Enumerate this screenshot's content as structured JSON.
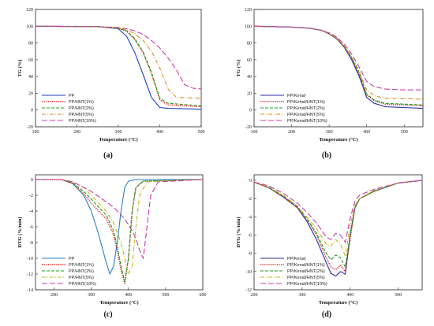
{
  "chart_data": [
    {
      "type": "line",
      "caption": "(a)",
      "xlabel": "Temperature (°C)",
      "ylabel": "TG (%)",
      "xlim": [
        100,
        500
      ],
      "ylim": [
        -20,
        120
      ],
      "xticks": [
        "100",
        "200",
        "300",
        "400",
        "500"
      ],
      "yticks": [
        "-20",
        "0",
        "20",
        "40",
        "60",
        "80",
        "100",
        "120"
      ],
      "legend_position": "bottom-left",
      "series": [
        {
          "name": "PP",
          "color": "#1f3fbf",
          "dash": "solid",
          "x": [
            100,
            250,
            300,
            320,
            340,
            360,
            380,
            400,
            420,
            500
          ],
          "y": [
            100,
            99.5,
            97,
            88,
            68,
            42,
            15,
            3,
            2,
            1
          ]
        },
        {
          "name": "PP/HNT(1%)",
          "color": "#d81b1b",
          "dash": "dotted",
          "x": [
            100,
            250,
            300,
            320,
            340,
            360,
            380,
            400,
            420,
            500
          ],
          "y": [
            100,
            99.5,
            97.5,
            94,
            84,
            68,
            43,
            12,
            6,
            4
          ]
        },
        {
          "name": "PP/HNT(2%)",
          "color": "#1a9a1a",
          "dash": "dashed",
          "x": [
            100,
            250,
            300,
            320,
            340,
            360,
            380,
            400,
            420,
            500
          ],
          "y": [
            100,
            99.5,
            97.5,
            94.5,
            85,
            69,
            45,
            14,
            8,
            5
          ]
        },
        {
          "name": "PP/HNT(5%)",
          "color": "#e08a1a",
          "dash": "dashdot",
          "x": [
            100,
            250,
            300,
            320,
            340,
            360,
            380,
            400,
            420,
            440,
            500
          ],
          "y": [
            100,
            99.5,
            98,
            95.5,
            91,
            83,
            70,
            50,
            25,
            15,
            14
          ]
        },
        {
          "name": "PP/HNT(10%)",
          "color": "#c83bb0",
          "dash": "longdash",
          "x": [
            100,
            250,
            300,
            320,
            340,
            360,
            380,
            400,
            420,
            440,
            460,
            480,
            500
          ],
          "y": [
            100,
            99.5,
            98.5,
            97,
            94.5,
            90,
            83,
            74,
            62,
            48,
            30,
            26,
            25
          ]
        }
      ]
    },
    {
      "type": "line",
      "caption": "(b)",
      "xlabel": "Temperature (°C)",
      "ylabel": "TG (%)",
      "xlim": [
        100,
        550
      ],
      "ylim": [
        -20,
        120
      ],
      "xticks": [
        "100",
        "200",
        "300",
        "400",
        "500"
      ],
      "yticks": [
        "-20",
        "0",
        "20",
        "40",
        "60",
        "80",
        "100",
        "120"
      ],
      "legend_position": "bottom-left",
      "series": [
        {
          "name": "PP/Kenaf",
          "color": "#2a2aa8",
          "dash": "solid",
          "x": [
            100,
            200,
            250,
            280,
            300,
            320,
            340,
            360,
            380,
            400,
            420,
            450,
            550
          ],
          "y": [
            100,
            99,
            97.5,
            95,
            91,
            85,
            75,
            60,
            40,
            15,
            8,
            4,
            2
          ]
        },
        {
          "name": "PP/Kenaf/HNT(1%)",
          "color": "#d81b1b",
          "dash": "dotted",
          "x": [
            100,
            200,
            250,
            280,
            300,
            320,
            340,
            360,
            380,
            400,
            420,
            450,
            550
          ],
          "y": [
            100,
            99,
            97.5,
            95,
            91,
            85.5,
            76,
            62,
            43,
            18,
            11,
            7,
            5
          ]
        },
        {
          "name": "PP/Kenaf/HNT(2%)",
          "color": "#1a9a1a",
          "dash": "dashed",
          "x": [
            100,
            200,
            250,
            280,
            300,
            320,
            340,
            360,
            380,
            400,
            420,
            450,
            550
          ],
          "y": [
            100,
            99,
            97.5,
            95,
            91,
            85.5,
            76,
            62,
            44,
            19,
            12,
            8,
            6
          ]
        },
        {
          "name": "PP/Kenaf/HNT(5%)",
          "color": "#e08a1a",
          "dash": "dashdot",
          "x": [
            100,
            200,
            250,
            280,
            300,
            320,
            340,
            360,
            380,
            400,
            420,
            450,
            550
          ],
          "y": [
            100,
            99,
            97.5,
            95,
            91.5,
            86,
            77,
            64,
            46,
            24,
            17,
            14,
            13
          ]
        },
        {
          "name": "PP/Kenaf/HNT(10%)",
          "color": "#c83bb0",
          "dash": "longdash",
          "x": [
            100,
            200,
            250,
            280,
            300,
            320,
            340,
            360,
            380,
            400,
            420,
            450,
            500,
            550
          ],
          "y": [
            100,
            99,
            97.5,
            95,
            92,
            87,
            79,
            67,
            51,
            34,
            28,
            25,
            24,
            24
          ]
        }
      ]
    },
    {
      "type": "line",
      "caption": "(c)",
      "xlabel": "Temperature (°C)",
      "ylabel": "DTG (%/min)",
      "xlim": [
        150,
        600
      ],
      "ylim": [
        -14,
        0.6
      ],
      "xticks": [
        "200",
        "300",
        "400",
        "500",
        "600"
      ],
      "yticks": [
        "-14",
        "-12",
        "-10",
        "-8",
        "-6",
        "-4",
        "-2",
        "0"
      ],
      "legend_position": "bottom-left",
      "series": [
        {
          "name": "PP",
          "color": "#2a7fc4",
          "dash": "solid",
          "x": [
            150,
            220,
            250,
            280,
            300,
            320,
            340,
            350,
            360,
            370,
            380,
            390,
            400,
            420,
            600
          ],
          "y": [
            0,
            0,
            -0.5,
            -2,
            -4,
            -7,
            -10.5,
            -12,
            -11,
            -8,
            -4,
            -1,
            -0.2,
            0,
            0
          ]
        },
        {
          "name": "PP/HNT(1%)",
          "color": "#d81b1b",
          "dash": "dotted",
          "x": [
            150,
            220,
            250,
            280,
            300,
            320,
            340,
            360,
            370,
            380,
            390,
            400,
            410,
            420,
            440,
            600
          ],
          "y": [
            0,
            0,
            -0.5,
            -1.8,
            -3,
            -4,
            -5,
            -7,
            -9,
            -11.5,
            -13.2,
            -10,
            -4,
            -1,
            -0.2,
            0
          ]
        },
        {
          "name": "PP/HNT(2%)",
          "color": "#1a9a1a",
          "dash": "dashed",
          "x": [
            150,
            220,
            250,
            280,
            300,
            320,
            340,
            360,
            370,
            380,
            390,
            400,
            410,
            420,
            440,
            600
          ],
          "y": [
            0,
            0,
            -0.4,
            -1.5,
            -2.5,
            -3.5,
            -4.5,
            -6.5,
            -8.5,
            -11,
            -13,
            -10,
            -4,
            -1,
            -0.2,
            0
          ]
        },
        {
          "name": "PP/HNT(5%)",
          "color": "#c8b21a",
          "dash": "dashdot",
          "x": [
            150,
            220,
            250,
            280,
            300,
            320,
            340,
            360,
            380,
            390,
            400,
            410,
            420,
            430,
            450,
            600
          ],
          "y": [
            0,
            0,
            -0.3,
            -1,
            -2,
            -3,
            -4,
            -5.5,
            -8,
            -10,
            -12,
            -11,
            -6,
            -2,
            -0.3,
            0
          ]
        },
        {
          "name": "PP/HNT(10%)",
          "color": "#c83bb0",
          "dash": "longdash",
          "x": [
            150,
            220,
            250,
            280,
            300,
            330,
            360,
            390,
            410,
            420,
            430,
            440,
            450,
            460,
            480,
            600
          ],
          "y": [
            0,
            0,
            -0.3,
            -1,
            -1.5,
            -2.5,
            -3.5,
            -5,
            -6.5,
            -7.5,
            -9,
            -10,
            -6,
            -2,
            -0.3,
            0
          ]
        }
      ]
    },
    {
      "type": "line",
      "caption": "(d)",
      "xlabel": "Temperature (°C)",
      "ylabel": "DTG (%/min)",
      "xlim": [
        200,
        550
      ],
      "ylim": [
        -12,
        0.6
      ],
      "xticks": [
        "200",
        "300",
        "400",
        "500"
      ],
      "yticks": [
        "-12",
        "-10",
        "-8",
        "-6",
        "-4",
        "-2",
        "0"
      ],
      "legend_position": "bottom-left",
      "series": [
        {
          "name": "PP/Kenaf",
          "color": "#2a2aa8",
          "dash": "solid",
          "x": [
            200,
            230,
            260,
            290,
            310,
            330,
            350,
            360,
            370,
            380,
            390,
            400,
            410,
            420,
            450,
            500,
            550
          ],
          "y": [
            -0.2,
            -0.8,
            -1.8,
            -3,
            -4.5,
            -6.5,
            -9,
            -10.2,
            -10.5,
            -10,
            -10.3,
            -6,
            -3,
            -2,
            -1.2,
            -0.3,
            0
          ]
        },
        {
          "name": "PP/Kenaf/HNT(1%)",
          "color": "#d81b1b",
          "dash": "dotted",
          "x": [
            200,
            230,
            260,
            290,
            310,
            330,
            350,
            360,
            370,
            380,
            390,
            400,
            410,
            420,
            450,
            500,
            550
          ],
          "y": [
            -0.2,
            -0.8,
            -1.8,
            -3,
            -4.3,
            -6,
            -8.5,
            -9.5,
            -9.8,
            -9.3,
            -10,
            -6.5,
            -3,
            -2,
            -1.2,
            -0.3,
            0
          ]
        },
        {
          "name": "PP/Kenaf/HNT(2%)",
          "color": "#1a9a1a",
          "dash": "dashed",
          "x": [
            200,
            230,
            260,
            290,
            310,
            330,
            350,
            360,
            370,
            380,
            390,
            400,
            410,
            420,
            450,
            500,
            550
          ],
          "y": [
            -0.2,
            -0.8,
            -1.7,
            -2.9,
            -4.2,
            -5.8,
            -8,
            -8.7,
            -8.2,
            -8.5,
            -9.5,
            -6,
            -3,
            -2,
            -1.2,
            -0.3,
            0
          ]
        },
        {
          "name": "PP/Kenaf/HNT(5%)",
          "color": "#c8b21a",
          "dash": "dashdot",
          "x": [
            200,
            230,
            260,
            290,
            310,
            330,
            350,
            360,
            370,
            380,
            390,
            400,
            410,
            420,
            450,
            500,
            550
          ],
          "y": [
            -0.2,
            -0.7,
            -1.6,
            -2.8,
            -4,
            -5.3,
            -7,
            -7.2,
            -6.5,
            -7,
            -8.3,
            -5,
            -2.7,
            -2,
            -1.1,
            -0.3,
            0
          ]
        },
        {
          "name": "PP/Kenaf/HNT(10%)",
          "color": "#c83bb0",
          "dash": "longdash",
          "x": [
            200,
            230,
            260,
            290,
            310,
            330,
            350,
            360,
            370,
            380,
            390,
            400,
            410,
            420,
            450,
            500,
            550
          ],
          "y": [
            -0.2,
            -0.6,
            -1.4,
            -2.5,
            -3.5,
            -4.7,
            -6.2,
            -6.5,
            -5.8,
            -6,
            -6.8,
            -4.2,
            -2.3,
            -1.6,
            -1,
            -0.3,
            0
          ]
        }
      ]
    }
  ]
}
